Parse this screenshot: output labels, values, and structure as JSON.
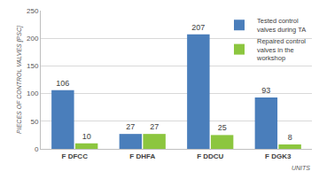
{
  "chart_data": {
    "type": "bar",
    "categories": [
      "F DFCC",
      "F DHFA",
      "F DDCU",
      "F DGK3"
    ],
    "series": [
      {
        "name": "Tested control valves during TA",
        "color": "#4a7ebb",
        "values": [
          106,
          27,
          207,
          93
        ]
      },
      {
        "name": "Repaired control valves in the workshop",
        "color": "#8cc63f",
        "values": [
          10,
          27,
          25,
          8
        ]
      }
    ],
    "x_label": "UNITS",
    "y_label": "PIECES OF CONTROL VALVES [PSC]",
    "ylim": [
      0,
      250
    ],
    "yticks": [
      0,
      50,
      100,
      150,
      200,
      250
    ],
    "grid": true,
    "legend": "top right",
    "data_labels": true
  }
}
